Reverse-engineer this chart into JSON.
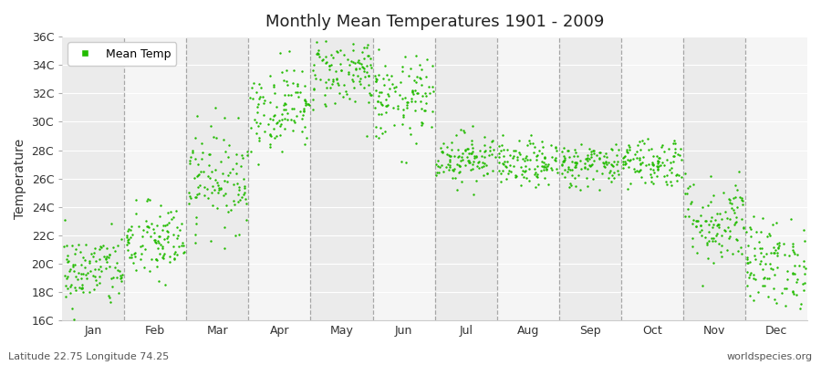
{
  "title": "Monthly Mean Temperatures 1901 - 2009",
  "ylabel": "Temperature",
  "xlabel": "",
  "footer_left": "Latitude 22.75 Longitude 74.25",
  "footer_right": "worldspecies.org",
  "legend_label": "Mean Temp",
  "dot_color": "#22bb00",
  "background_color": "#ffffff",
  "band_color_odd": "#ebebeb",
  "band_color_even": "#f5f5f5",
  "ylim": [
    16,
    36
  ],
  "ytick_labels": [
    "16C",
    "18C",
    "20C",
    "22C",
    "24C",
    "26C",
    "28C",
    "30C",
    "32C",
    "34C",
    "36C"
  ],
  "ytick_values": [
    16,
    18,
    20,
    22,
    24,
    26,
    28,
    30,
    32,
    34,
    36
  ],
  "months": [
    "Jan",
    "Feb",
    "Mar",
    "Apr",
    "May",
    "Jun",
    "Jul",
    "Aug",
    "Sep",
    "Oct",
    "Nov",
    "Dec"
  ],
  "month_means": [
    19.5,
    21.5,
    26.0,
    31.0,
    33.5,
    31.5,
    27.5,
    27.0,
    27.0,
    27.2,
    23.0,
    20.0
  ],
  "month_stds": [
    1.3,
    1.4,
    1.8,
    1.5,
    1.3,
    1.5,
    0.9,
    0.8,
    0.8,
    0.9,
    1.6,
    1.6
  ],
  "n_years": 109,
  "seed": 42,
  "dashed_line_color": "#888888",
  "grid_color": "#ffffff"
}
